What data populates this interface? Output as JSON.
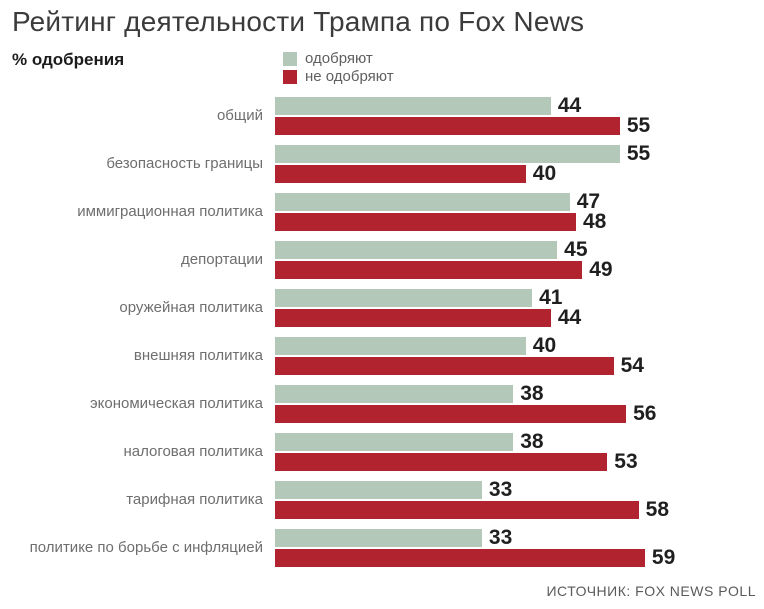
{
  "title": "Рейтинг деятельности Трампа по Fox News",
  "subtitle": "% одобрения",
  "legend": {
    "approve_label": "одобряют",
    "disapprove_label": "не одобряют"
  },
  "source": "ИСТОЧНИК: FOX NEWS POLL",
  "colors": {
    "approve": "#b3c8b9",
    "disapprove": "#b0232f",
    "title_text": "#3b3b3b",
    "category_text": "#6e6e6e",
    "value_text": "#1f1f1f",
    "background": "#ffffff"
  },
  "chart_data": {
    "type": "bar",
    "orientation": "horizontal",
    "title": "Рейтинг деятельности Трампа по Fox News",
    "xlabel": "% одобрения",
    "ylabel": "",
    "xlim": [
      0,
      62
    ],
    "grid": false,
    "legend_position": "top",
    "value_labels": true,
    "categories": [
      "общий",
      "безопасность границы",
      "иммиграционная политика",
      "депортации",
      "оружейная политика",
      "внешняя политика",
      "экономическая политика",
      "налоговая политика",
      "тарифная политика",
      "политике по борьбе с инфляцией"
    ],
    "series": [
      {
        "name": "одобряют",
        "color": "#b3c8b9",
        "values": [
          44,
          55,
          47,
          45,
          41,
          40,
          38,
          38,
          33,
          33
        ]
      },
      {
        "name": "не одобряют",
        "color": "#b0232f",
        "values": [
          55,
          40,
          48,
          49,
          44,
          54,
          56,
          53,
          58,
          59
        ]
      }
    ]
  }
}
